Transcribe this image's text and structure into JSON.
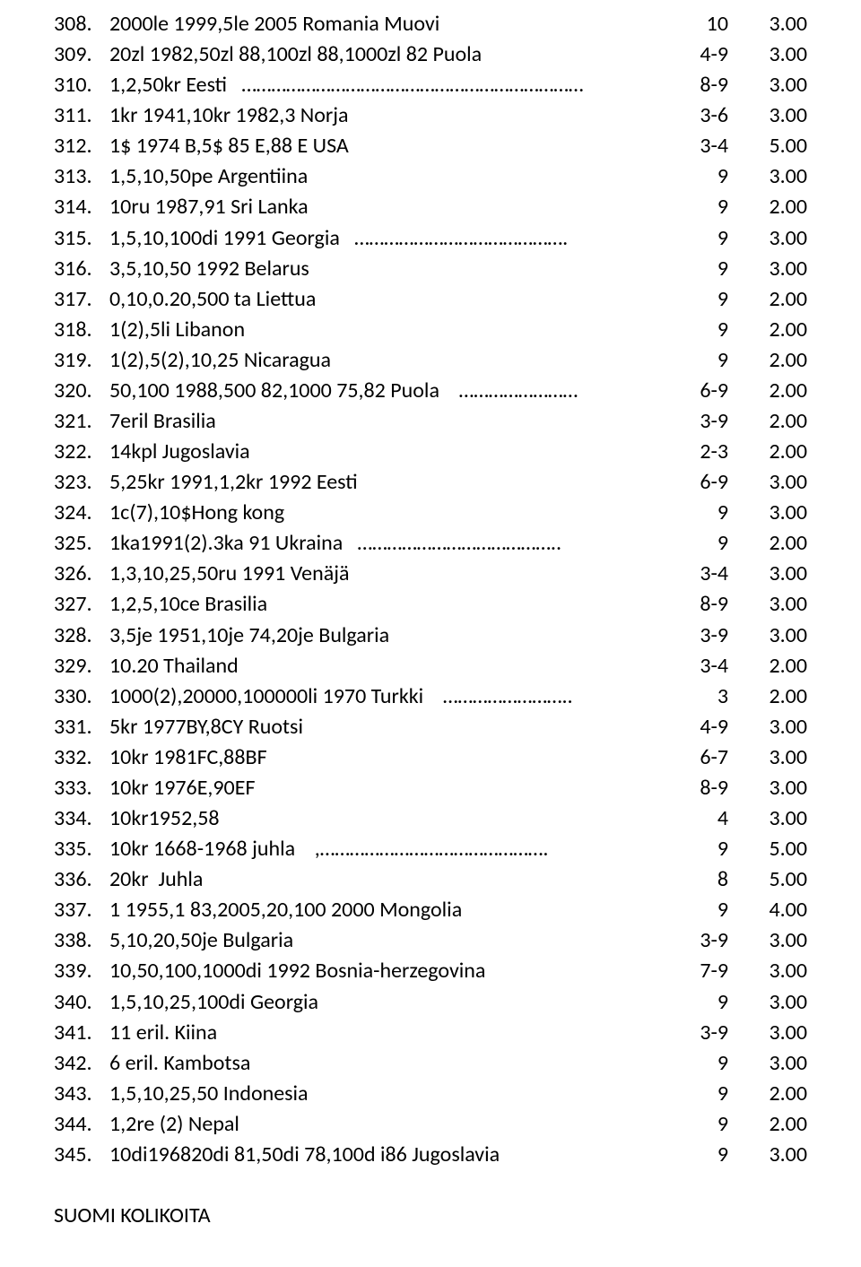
{
  "rows": [
    {
      "n": "308.",
      "d": "2000le 1999,5le 2005 Romania Muovi",
      "c": "10",
      "p": "3.00"
    },
    {
      "n": "309.",
      "d": "20zl 1982,50zl 88,100zl 88,1000zl 82 Puola",
      "c": "4-9",
      "p": "3.00"
    },
    {
      "n": "310.",
      "d": "1,2,50kr Eesti   ……………………………………………………………",
      "c": "8-9",
      "p": "3.00"
    },
    {
      "n": "311.",
      "d": "1kr 1941,10kr 1982,3 Norja",
      "c": "3-6",
      "p": "3.00"
    },
    {
      "n": "312.",
      "d": "1$ 1974 B,5$ 85 E,88 E USA",
      "c": "3-4",
      "p": "5.00"
    },
    {
      "n": "313.",
      "d": "1,5,10,50pe Argentiina",
      "c": "9",
      "p": "3.00"
    },
    {
      "n": "314.",
      "d": "10ru 1987,91 Sri Lanka",
      "c": "9",
      "p": "2.00"
    },
    {
      "n": "315.",
      "d": "1,5,10,100di 1991 Georgia   …………………………………….",
      "c": "9",
      "p": "3.00"
    },
    {
      "n": "316.",
      "d": "3,5,10,50 1992 Belarus",
      "c": "9",
      "p": "3.00"
    },
    {
      "n": "317.",
      "d": "0,10,0.20,500 ta Liettua",
      "c": "9",
      "p": "2.00"
    },
    {
      "n": "318.",
      "d": "1(2),5li Libanon",
      "c": "9",
      "p": "2.00"
    },
    {
      "n": "319.",
      "d": "1(2),5(2),10,25 Nicaragua",
      "c": "9",
      "p": "2.00"
    },
    {
      "n": "320.",
      "d": "50,100 1988,500 82,1000 75,82 Puola    ……………………",
      "c": "6-9",
      "p": "2.00"
    },
    {
      "n": "321.",
      "d": "7eril Brasilia",
      "c": "3-9",
      "p": "2.00"
    },
    {
      "n": "322.",
      "d": "14kpl Jugoslavia",
      "c": "2-3",
      "p": "2.00"
    },
    {
      "n": "323.",
      "d": "5,25kr 1991,1,2kr 1992 Eesti",
      "c": "6-9",
      "p": "3.00"
    },
    {
      "n": "324.",
      "d": "1c(7),10$Hong kong",
      "c": "9",
      "p": "3.00"
    },
    {
      "n": "325.",
      "d": "1ka1991(2).3ka 91 Ukraina   …………………………………..",
      "c": "9",
      "p": "2.00"
    },
    {
      "n": "326.",
      "d": "1,3,10,25,50ru 1991 Venäjä",
      "c": "3-4",
      "p": "3.00"
    },
    {
      "n": "327.",
      "d": "1,2,5,10ce Brasilia",
      "c": "8-9",
      "p": "3.00"
    },
    {
      "n": "328.",
      "d": "3,5je 1951,10je 74,20je Bulgaria",
      "c": "3-9",
      "p": "3.00"
    },
    {
      "n": "329.",
      "d": "10.20 Thailand",
      "c": "3-4",
      "p": "2.00"
    },
    {
      "n": "330.",
      "d": "1000(2),20000,100000li 1970 Turkki    ……………………..",
      "c": "3",
      "p": "2.00"
    },
    {
      "n": "331.",
      "d": "5kr 1977BY,8CY Ruotsi",
      "c": "4-9",
      "p": "3.00"
    },
    {
      "n": "332.",
      "d": "10kr 1981FC,88BF",
      "c": "6-7",
      "p": "3.00"
    },
    {
      "n": "333.",
      "d": "10kr 1976E,90EF",
      "c": "8-9",
      "p": "3.00"
    },
    {
      "n": "334.",
      "d": "10kr1952,58",
      "c": "4",
      "p": "3.00"
    },
    {
      "n": "335.",
      "d": "10kr 1668-1968 juhla    ,……………………………………….",
      "c": "9",
      "p": "5.00"
    },
    {
      "n": "336.",
      "d": "20kr  Juhla",
      "c": "8",
      "p": "5.00"
    },
    {
      "n": "337.",
      "d": "1 1955,1 83,2005,20,100 2000 Mongolia",
      "c": "9",
      "p": "4.00"
    },
    {
      "n": "338.",
      "d": "5,10,20,50je Bulgaria",
      "c": "3-9",
      "p": "3.00"
    },
    {
      "n": "339.",
      "d": "10,50,100,1000di 1992 Bosnia-herzegovina",
      "c": "7-9",
      "p": "3.00"
    },
    {
      "n": "340.",
      "d": "1,5,10,25,100di Georgia",
      "c": "9",
      "p": "3.00"
    },
    {
      "n": "341.",
      "d": "11 eril. Kiina",
      "c": "3-9",
      "p": "3.00"
    },
    {
      "n": "342.",
      "d": "6 eril. Kambotsa",
      "c": "9",
      "p": "3.00"
    },
    {
      "n": "343.",
      "d": "1,5,10,25,50 Indonesia",
      "c": "9",
      "p": "2.00"
    },
    {
      "n": "344.",
      "d": "1,2re (2) Nepal",
      "c": "9",
      "p": "2.00"
    },
    {
      "n": "345.",
      "d": "10di196820di 81,50di 78,100d i86 Jugoslavia",
      "c": "9",
      "p": "3.00"
    }
  ],
  "footer": "SUOMI KOLIKOITA"
}
